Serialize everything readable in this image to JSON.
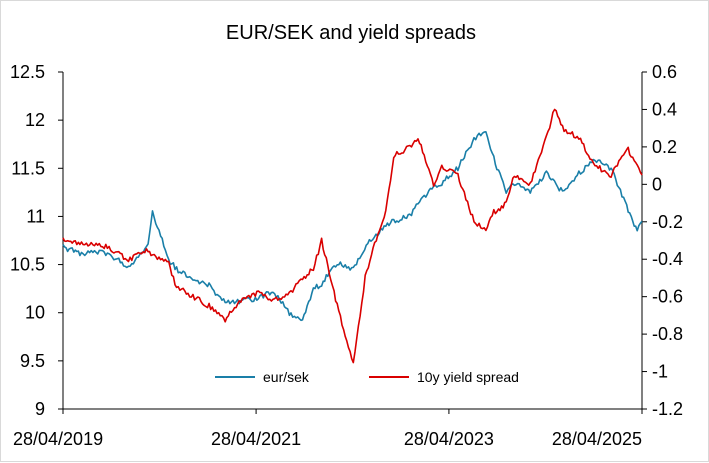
{
  "chart_data": {
    "type": "line",
    "title": "EUR/SEK and yield spreads",
    "x_tick_labels": [
      "28/04/2019",
      "28/04/2021",
      "28/04/2023",
      "28/04/2025"
    ],
    "x_range": [
      "28/04/2019",
      "28/04/2025"
    ],
    "left_axis": {
      "ylim": [
        9,
        12.5
      ],
      "ticks": [
        "12.5",
        "12",
        "11.5",
        "11",
        "10.5",
        "10",
        "9.5",
        "9"
      ]
    },
    "right_axis": {
      "ylim": [
        -1.2,
        0.6
      ],
      "ticks": [
        "0.6",
        "0.4",
        "0.2",
        "0",
        "-0.2",
        "-0.4",
        "-0.6",
        "-0.8",
        "-1",
        "-1.2"
      ]
    },
    "grid": false,
    "legend": "bottom-center",
    "series": [
      {
        "name": "eur/sek",
        "axis": "left",
        "color": "#1a7fa8",
        "x": [
          "2019-04-28",
          "2019-07-01",
          "2019-10-01",
          "2020-01-01",
          "2020-03-15",
          "2020-04-01",
          "2020-06-01",
          "2020-07-01",
          "2020-09-01",
          "2020-11-01",
          "2021-01-01",
          "2021-03-01",
          "2021-05-01",
          "2021-07-01",
          "2021-09-01",
          "2021-10-15",
          "2021-12-01",
          "2022-01-01",
          "2022-03-01",
          "2022-05-01",
          "2022-07-01",
          "2022-09-01",
          "2022-10-01",
          "2022-12-01",
          "2023-01-01",
          "2023-03-01",
          "2023-04-01",
          "2023-06-01",
          "2023-08-01",
          "2023-09-15",
          "2023-10-15",
          "2023-12-01",
          "2024-01-01",
          "2024-03-01",
          "2024-05-01",
          "2024-07-01",
          "2024-09-01",
          "2024-11-01",
          "2025-01-01",
          "2025-03-01",
          "2025-04-10",
          "2025-04-28"
        ],
        "values": [
          10.68,
          10.62,
          10.63,
          10.48,
          10.7,
          11.05,
          10.55,
          10.45,
          10.35,
          10.28,
          10.1,
          10.12,
          10.15,
          10.22,
          10.0,
          9.9,
          10.25,
          10.3,
          10.52,
          10.45,
          10.75,
          10.9,
          10.95,
          11.0,
          11.15,
          11.3,
          11.35,
          11.5,
          11.8,
          11.9,
          11.6,
          11.25,
          11.35,
          11.25,
          11.45,
          11.25,
          11.45,
          11.6,
          11.5,
          11.1,
          10.85,
          10.95
        ]
      },
      {
        "name": "10y yield spread",
        "axis": "right",
        "color": "#d90000",
        "x": [
          "2019-04-28",
          "2019-07-01",
          "2019-10-01",
          "2020-01-01",
          "2020-03-15",
          "2020-04-01",
          "2020-06-01",
          "2020-07-01",
          "2020-09-01",
          "2020-11-01",
          "2021-01-01",
          "2021-03-01",
          "2021-05-01",
          "2021-07-01",
          "2021-09-01",
          "2021-10-15",
          "2021-12-01",
          "2022-01-01",
          "2022-03-01",
          "2022-05-01",
          "2022-06-15",
          "2022-07-15",
          "2022-09-01",
          "2022-10-01",
          "2022-12-01",
          "2023-01-01",
          "2023-03-01",
          "2023-04-01",
          "2023-06-01",
          "2023-08-01",
          "2023-09-15",
          "2023-10-15",
          "2023-12-01",
          "2024-01-01",
          "2024-03-01",
          "2024-05-01",
          "2024-06-01",
          "2024-07-01",
          "2024-09-01",
          "2024-11-01",
          "2025-01-01",
          "2025-03-01",
          "2025-04-10",
          "2025-04-28"
        ],
        "values": [
          -0.3,
          -0.32,
          -0.33,
          -0.4,
          -0.35,
          -0.38,
          -0.42,
          -0.55,
          -0.6,
          -0.65,
          -0.72,
          -0.62,
          -0.58,
          -0.62,
          -0.58,
          -0.52,
          -0.45,
          -0.3,
          -0.65,
          -0.95,
          -0.5,
          -0.35,
          -0.15,
          0.15,
          0.2,
          0.25,
          0.0,
          0.1,
          0.05,
          -0.2,
          -0.25,
          -0.15,
          -0.1,
          0.05,
          0.0,
          0.25,
          0.4,
          0.3,
          0.25,
          0.1,
          0.05,
          0.2,
          0.1,
          0.05
        ]
      }
    ]
  }
}
